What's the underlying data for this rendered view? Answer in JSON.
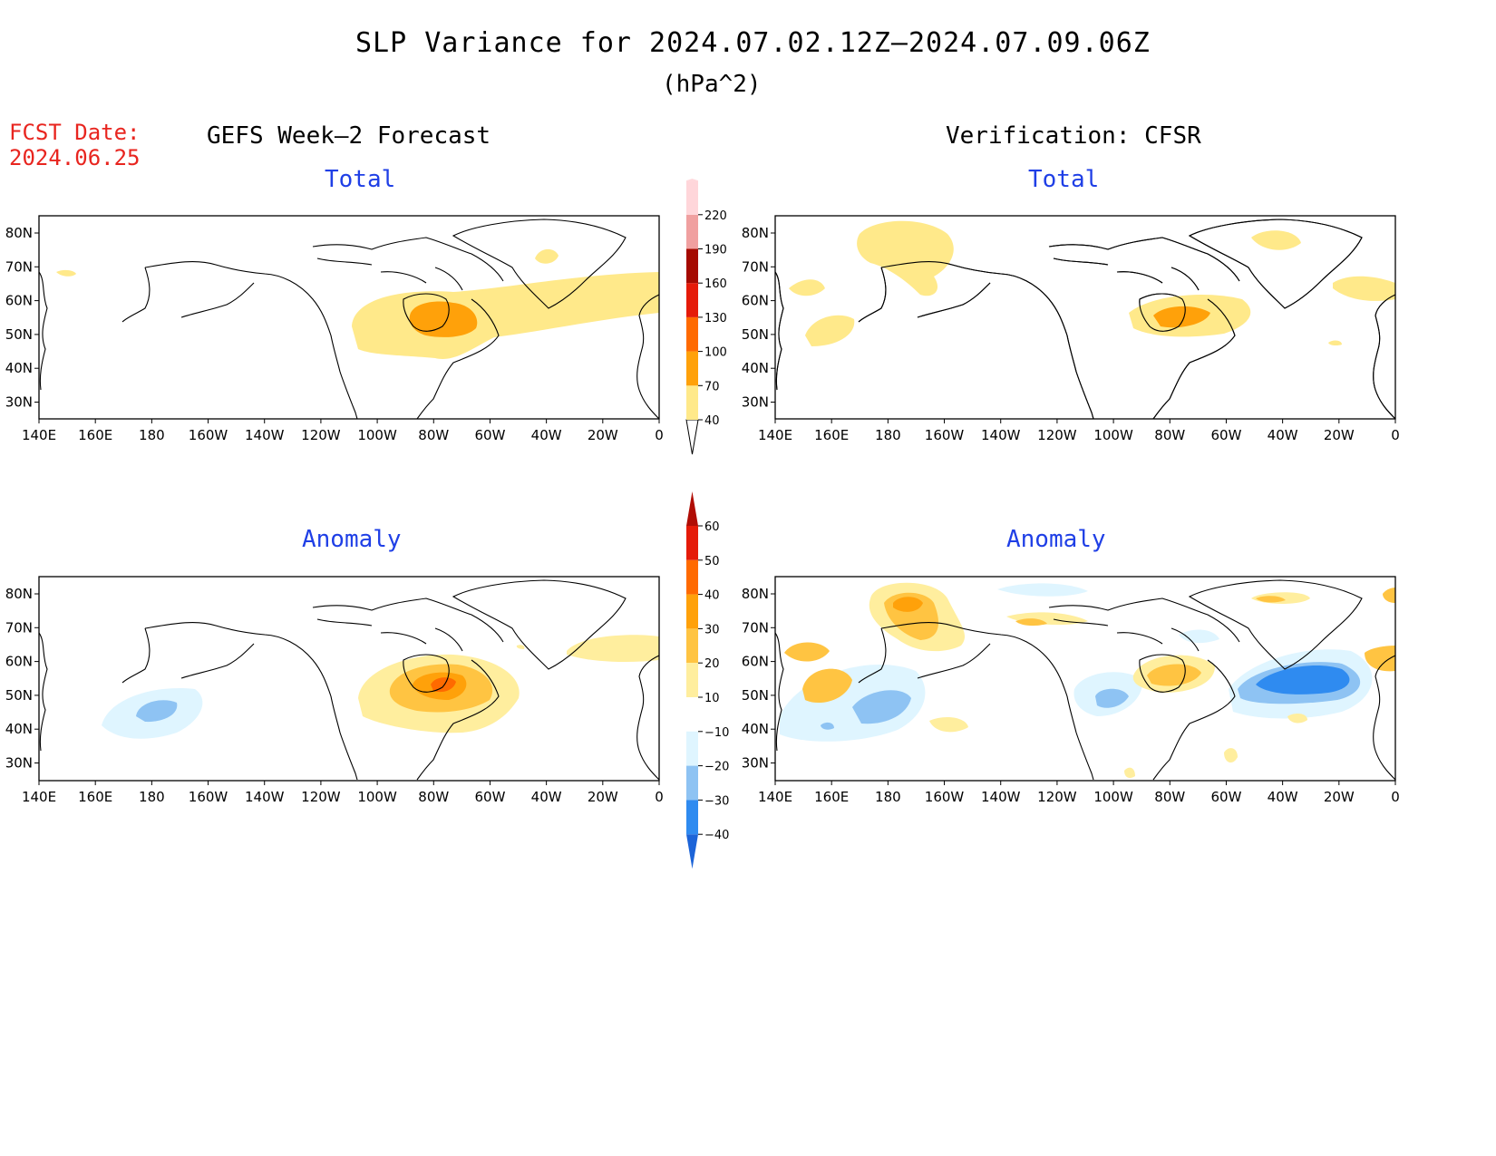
{
  "title": "SLP Variance for 2024.07.02.12Z–2024.07.09.06Z",
  "units": "(hPa^2)",
  "fcst_label": "FCST Date:",
  "fcst_date": "2024.06.25",
  "left_header": "GEFS Week–2 Forecast",
  "right_header": "Verification: CFSR",
  "total_label": "Total",
  "anomaly_label": "Anomaly",
  "lat_labels": [
    "80N",
    "70N",
    "60N",
    "50N",
    "40N",
    "30N"
  ],
  "lon_labels": [
    "140E",
    "160E",
    "180",
    "160W",
    "140W",
    "120W",
    "100W",
    "80W",
    "60W",
    "40W",
    "20W",
    "0"
  ],
  "total_colorbar": {
    "levels": [
      "40",
      "70",
      "100",
      "130",
      "160",
      "190",
      "220"
    ],
    "colors": [
      "#ffe98a",
      "#ffa10a",
      "#ff6a00",
      "#e51b09",
      "#a50a00",
      "#f0a0a0",
      "#ffd6da"
    ]
  },
  "anomaly_colorbar": {
    "levels": [
      "−40",
      "−30",
      "−20",
      "−10",
      "10",
      "20",
      "30",
      "40",
      "50",
      "60"
    ],
    "colors": [
      "#1c64d8",
      "#2f8bf0",
      "#8ec3f3",
      "#dff5ff",
      "#ffffff",
      "#ffee9e",
      "#ffc442",
      "#ffa10a",
      "#ff6a00",
      "#e51b09",
      "#b00d05"
    ]
  },
  "colors": {
    "title_red": "#e8251f",
    "subtitle_blue": "#1f3fe6"
  }
}
